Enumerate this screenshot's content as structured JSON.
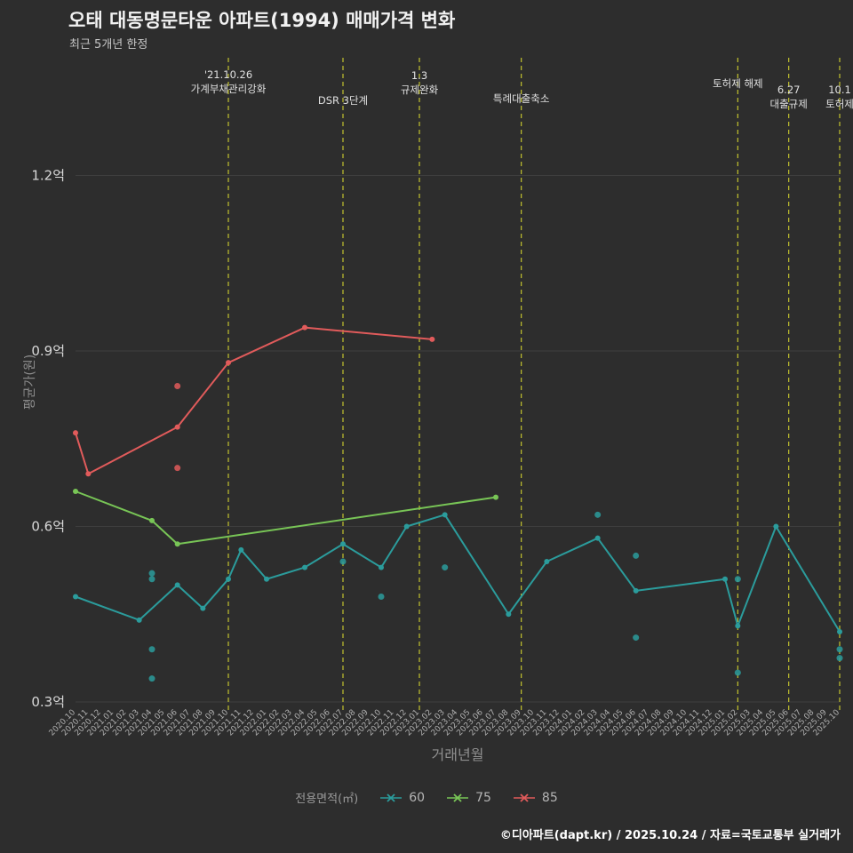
{
  "footer": {
    "text": "©디아파트(dapt.kr) / 2025.10.24 / 자료=국토교통부 실거래가"
  },
  "chart_data": {
    "type": "line",
    "title": "오태 대동명문타운 아파트(1994) 매매가격 변화",
    "subtitle": "최근 5개년 한정",
    "xlabel": "거래년월",
    "ylabel": "평균가(원)",
    "legend_label": "전용면적(㎡)",
    "legend_position": "bottom",
    "grid": "horizontal",
    "ylim": [
      0.3,
      1.2
    ],
    "yticks": [
      {
        "value": 0.3,
        "label": "0.3억"
      },
      {
        "value": 0.6,
        "label": "0.6억"
      },
      {
        "value": 0.9,
        "label": "0.9억"
      },
      {
        "value": 1.2,
        "label": "1.2억"
      }
    ],
    "categories": [
      "2020.10",
      "2020.11",
      "2020.12",
      "2021.01",
      "2021.02",
      "2021.03",
      "2021.04",
      "2021.05",
      "2021.06",
      "2021.07",
      "2021.08",
      "2021.09",
      "2021.10",
      "2021.11",
      "2021.12",
      "2022.01",
      "2022.02",
      "2022.03",
      "2022.04",
      "2022.05",
      "2022.06",
      "2022.07",
      "2022.08",
      "2022.09",
      "2022.10",
      "2022.11",
      "2022.12",
      "2023.01",
      "2023.02",
      "2023.03",
      "2023.04",
      "2023.05",
      "2023.06",
      "2023.07",
      "2023.08",
      "2023.09",
      "2023.10",
      "2023.11",
      "2023.12",
      "2024.01",
      "2024.02",
      "2024.03",
      "2024.04",
      "2024.05",
      "2024.06",
      "2024.07",
      "2024.08",
      "2024.09",
      "2024.10",
      "2024.11",
      "2024.12",
      "2025.01",
      "2025.02",
      "2025.03",
      "2025.04",
      "2025.05",
      "2025.06",
      "2025.07",
      "2025.08",
      "2025.09",
      "2025.10"
    ],
    "series": [
      {
        "name": "60",
        "color": "#2b9c9c",
        "points": [
          [
            "2020.10",
            0.48
          ],
          [
            "2021.03",
            0.44
          ],
          [
            "2021.06",
            0.5
          ],
          [
            "2021.08",
            0.46
          ],
          [
            "2021.10",
            0.51
          ],
          [
            "2021.11",
            0.56
          ],
          [
            "2022.01",
            0.51
          ],
          [
            "2022.04",
            0.53
          ],
          [
            "2022.07",
            0.57
          ],
          [
            "2022.10",
            0.53
          ],
          [
            "2022.12",
            0.6
          ],
          [
            "2023.03",
            0.62
          ],
          [
            "2023.08",
            0.45
          ],
          [
            "2023.11",
            0.54
          ],
          [
            "2024.03",
            0.58
          ],
          [
            "2024.06",
            0.49
          ],
          [
            "2025.01",
            0.51
          ],
          [
            "2025.02",
            0.43
          ],
          [
            "2025.05",
            0.6
          ],
          [
            "2025.10",
            0.42
          ]
        ]
      },
      {
        "name": "75",
        "color": "#78c556",
        "points": [
          [
            "2020.10",
            0.66
          ],
          [
            "2021.04",
            0.61
          ],
          [
            "2021.06",
            0.57
          ],
          [
            "2023.07",
            0.65
          ]
        ]
      },
      {
        "name": "85",
        "color": "#e15b5b",
        "points": [
          [
            "2020.10",
            0.76
          ],
          [
            "2020.11",
            0.69
          ],
          [
            "2021.06",
            0.77
          ],
          [
            "2021.10",
            0.88
          ],
          [
            "2022.04",
            0.94
          ],
          [
            "2023.02",
            0.92
          ]
        ]
      }
    ],
    "scatter": [
      [
        "60",
        "2021.04",
        0.52
      ],
      [
        "60",
        "2021.04",
        0.51
      ],
      [
        "60",
        "2021.04",
        0.39
      ],
      [
        "60",
        "2021.04",
        0.34
      ],
      [
        "60",
        "2022.07",
        0.54
      ],
      [
        "60",
        "2022.10",
        0.48
      ],
      [
        "60",
        "2023.03",
        0.53
      ],
      [
        "60",
        "2024.03",
        0.62
      ],
      [
        "60",
        "2024.06",
        0.55
      ],
      [
        "60",
        "2024.06",
        0.41
      ],
      [
        "60",
        "2025.02",
        0.51
      ],
      [
        "60",
        "2025.02",
        0.35
      ],
      [
        "60",
        "2025.10",
        0.39
      ],
      [
        "60",
        "2025.10",
        0.375
      ],
      [
        "85",
        "2021.06",
        0.84
      ],
      [
        "85",
        "2021.06",
        0.7
      ]
    ],
    "annotations": [
      {
        "x": "2021.10",
        "lines": [
          "'21.10.26",
          "가계부채관리강화"
        ],
        "y": 88
      },
      {
        "x": "2022.07",
        "lines": [
          "DSR 3단계"
        ],
        "y": 117
      },
      {
        "x": "2023.01",
        "lines": [
          "1.3",
          "규제완화"
        ],
        "y": 89
      },
      {
        "x": "2023.09",
        "lines": [
          "특례대출축소"
        ],
        "y": 115
      },
      {
        "x": "2025.02",
        "lines": [
          "토허제 해제"
        ],
        "y": 98
      },
      {
        "x": "2025.06",
        "lines": [
          "6.27",
          "대출규제"
        ],
        "y": 105
      },
      {
        "x": "2025.10",
        "lines": [
          "10.1",
          "토허제"
        ],
        "y": 105
      }
    ],
    "colors": {
      "background": "#2d2d2d",
      "grid": "#3e3e3e",
      "event_line": "#c3c32e",
      "annotation_text": "#e0e0e0",
      "ytick_text": "#d8d8d8",
      "xtick_text": "#b0b0b0"
    }
  }
}
